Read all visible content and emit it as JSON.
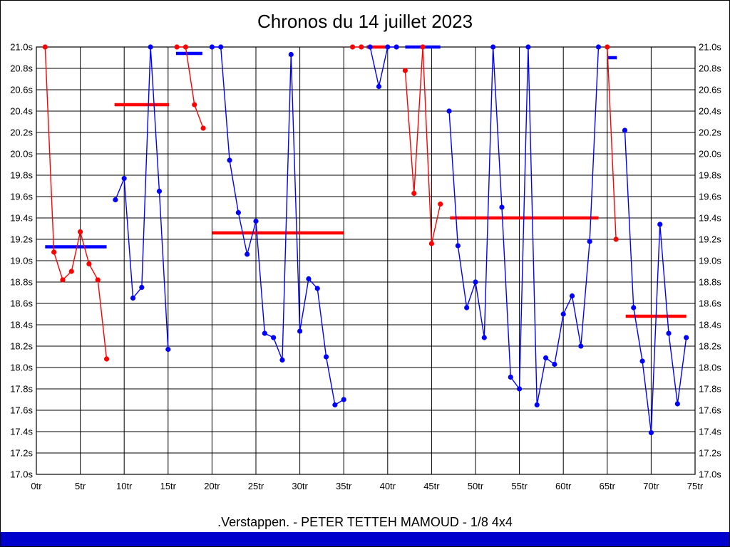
{
  "title": "Chronos du 14 juillet 2023",
  "caption": ".Verstappen. - PETER TETTEH MAMOUD - 1/8 4x4",
  "colors": {
    "red_series": "#ff0000",
    "blue_series": "#0000ff",
    "grid": "#000000",
    "axis_text": "#000000",
    "footer_bar": "#0000cc",
    "background": "#ffffff"
  },
  "chart_data": {
    "type": "line",
    "title": "Chronos du 14 juillet 2023",
    "x_unit": "tr",
    "y_unit": "s",
    "x_range": [
      0,
      75
    ],
    "y_range": [
      17.0,
      21.0
    ],
    "y_tick_step": 0.2,
    "grid": true,
    "x_tick_labels": [
      "0tr",
      "5tr",
      "10tr",
      "15tr",
      "20tr",
      "25tr",
      "30tr",
      "35tr",
      "40tr",
      "45tr",
      "50tr",
      "55tr",
      "60tr",
      "65tr",
      "70tr",
      "75tr"
    ],
    "y_tick_labels": [
      "21.0s",
      "20.8s",
      "20.6s",
      "20.4s",
      "20.2s",
      "20.0s",
      "19.8s",
      "19.6s",
      "19.4s",
      "19.2s",
      "19.0s",
      "18.8s",
      "18.6s",
      "18.4s",
      "18.2s",
      "18.0s",
      "17.8s",
      "17.6s",
      "17.4s",
      "17.2s",
      "17.0s"
    ],
    "clip_value": 21.0,
    "series": [
      {
        "name": "driver-red",
        "color": "#ff0000",
        "stints": [
          [
            [
              1,
              21.0
            ],
            [
              2,
              19.08
            ],
            [
              3,
              18.82
            ],
            [
              4,
              18.9
            ],
            [
              5,
              19.27
            ],
            [
              6,
              18.97
            ],
            [
              7,
              18.82
            ],
            [
              8,
              18.08
            ]
          ],
          [
            [
              16,
              21.0
            ],
            [
              17,
              21.0
            ],
            [
              18,
              20.46
            ],
            [
              19,
              20.24
            ]
          ],
          [
            [
              36,
              21.0
            ],
            [
              37,
              21.0
            ]
          ],
          [
            [
              42,
              20.78
            ],
            [
              43,
              19.63
            ],
            [
              44,
              21.0
            ],
            [
              45,
              19.16
            ],
            [
              46,
              19.53
            ]
          ],
          [
            [
              65,
              21.0
            ],
            [
              66,
              19.2
            ]
          ]
        ]
      },
      {
        "name": "driver-blue",
        "color": "#0000ff",
        "stints": [
          [
            [
              9,
              19.57
            ],
            [
              10,
              19.77
            ],
            [
              11,
              18.65
            ],
            [
              12,
              18.75
            ],
            [
              13,
              21.0
            ],
            [
              14,
              19.65
            ],
            [
              15,
              18.17
            ]
          ],
          [
            [
              20,
              21.0
            ],
            [
              21,
              21.0
            ],
            [
              22,
              19.94
            ],
            [
              23,
              19.45
            ],
            [
              24,
              19.06
            ],
            [
              25,
              19.37
            ],
            [
              26,
              18.32
            ],
            [
              27,
              18.28
            ],
            [
              28,
              18.07
            ],
            [
              29,
              20.93
            ],
            [
              30,
              18.34
            ],
            [
              31,
              18.83
            ],
            [
              32,
              18.74
            ],
            [
              33,
              18.1
            ],
            [
              34,
              17.65
            ],
            [
              35,
              17.7
            ]
          ],
          [
            [
              38,
              21.0
            ],
            [
              39,
              20.63
            ],
            [
              40,
              21.0
            ],
            [
              41,
              21.0
            ]
          ],
          [
            [
              47,
              20.4
            ],
            [
              48,
              19.14
            ],
            [
              49,
              18.56
            ],
            [
              50,
              18.8
            ],
            [
              51,
              18.28
            ],
            [
              52,
              21.0
            ],
            [
              53,
              19.5
            ],
            [
              54,
              17.91
            ],
            [
              55,
              17.8
            ],
            [
              56,
              21.0
            ],
            [
              57,
              17.65
            ],
            [
              58,
              18.09
            ],
            [
              59,
              18.03
            ],
            [
              60,
              18.5
            ],
            [
              61,
              18.67
            ],
            [
              62,
              18.2
            ],
            [
              63,
              19.18
            ],
            [
              64,
              21.0
            ]
          ],
          [
            [
              67,
              20.22
            ],
            [
              68,
              18.56
            ],
            [
              69,
              18.06
            ],
            [
              70,
              17.39
            ],
            [
              71,
              19.34
            ],
            [
              72,
              18.32
            ],
            [
              73,
              17.66
            ],
            [
              74,
              18.28
            ]
          ]
        ]
      }
    ],
    "average_segments": [
      {
        "color": "#0000ff",
        "lap_start": 1.0,
        "lap_end": 8.0,
        "value": 19.13
      },
      {
        "color": "#ff0000",
        "lap_start": 8.9,
        "lap_end": 15.1,
        "value": 20.46
      },
      {
        "color": "#0000ff",
        "lap_start": 15.9,
        "lap_end": 18.9,
        "value": 20.94
      },
      {
        "color": "#ff0000",
        "lap_start": 20.0,
        "lap_end": 35.0,
        "value": 19.26
      },
      {
        "color": "#ff0000",
        "lap_start": 37.6,
        "lap_end": 39.9,
        "value": 21.0
      },
      {
        "color": "#0000ff",
        "lap_start": 42.0,
        "lap_end": 46.0,
        "value": 21.0
      },
      {
        "color": "#ff0000",
        "lap_start": 47.1,
        "lap_end": 64.0,
        "value": 19.4
      },
      {
        "color": "#0000ff",
        "lap_start": 65.0,
        "lap_end": 66.1,
        "value": 20.9
      },
      {
        "color": "#ff0000",
        "lap_start": 67.1,
        "lap_end": 74.0,
        "value": 18.48
      }
    ]
  }
}
